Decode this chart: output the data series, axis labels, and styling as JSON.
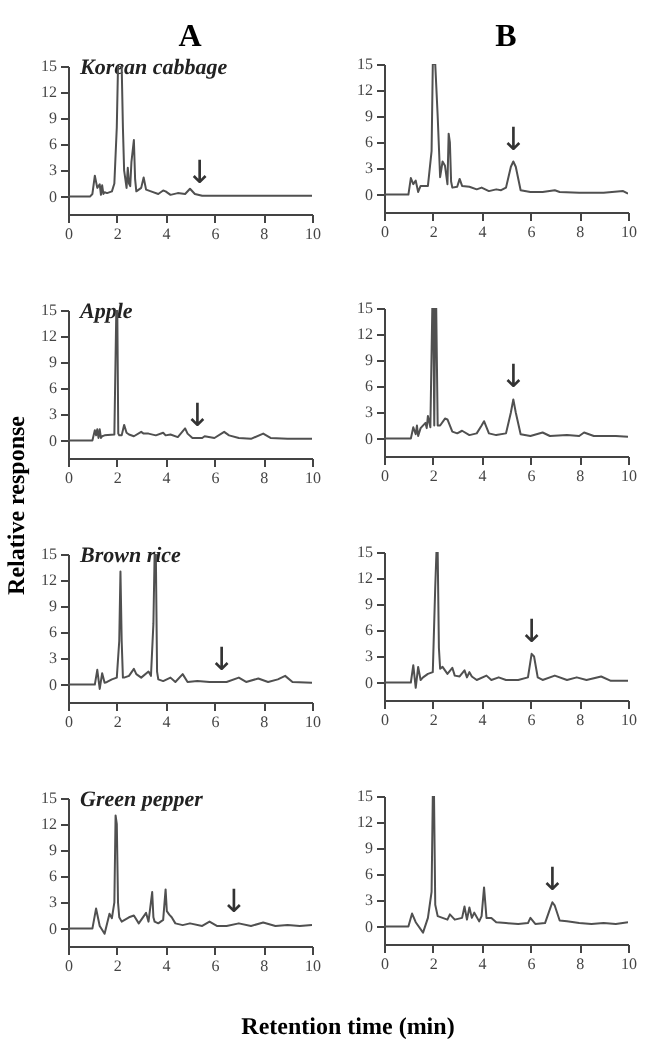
{
  "chart_data": [
    {
      "type": "line",
      "title": "A",
      "xlim": [
        0,
        10
      ],
      "xticks": [
        0,
        2,
        4,
        6,
        8,
        10
      ],
      "ylim": [
        -2,
        15
      ],
      "yticks": [
        0,
        3,
        6,
        9,
        12,
        15
      ],
      "x": [
        0,
        0.9,
        1.0,
        1.1,
        1.2,
        1.3,
        1.35,
        1.4,
        1.45,
        1.5,
        1.6,
        1.8,
        1.9,
        2.0,
        2.05,
        2.1,
        2.2,
        2.25,
        2.3,
        2.4,
        2.45,
        2.5,
        2.55,
        2.6,
        2.7,
        2.75,
        2.8,
        2.9,
        3.0,
        3.1,
        3.2,
        3.4,
        3.7,
        3.9,
        4.0,
        4.2,
        4.5,
        4.8,
        5.0,
        5.2,
        5.5,
        6,
        7,
        8,
        9,
        10
      ],
      "series": [
        {
          "color": "#505050",
          "values": [
            0,
            0,
            0.3,
            2.4,
            1.0,
            1.4,
            0.2,
            1.3,
            0.3,
            0.5,
            0.4,
            0.6,
            1.5,
            8,
            15,
            15,
            15,
            8,
            3,
            1,
            3.3,
            1.5,
            1.2,
            4,
            6.5,
            2,
            0.6,
            0.8,
            1.0,
            2.2,
            0.8,
            0.6,
            0.3,
            0.7,
            0.6,
            0.2,
            0.4,
            0.3,
            0.9,
            0.3,
            0.1,
            0.1,
            0.1,
            0.1,
            0.1,
            0.1
          ]
        }
      ],
      "annotations": [
        "Korean cabbage",
        {
          "text": "↓",
          "x": 5.4,
          "y": 0.2
        }
      ]
    },
    {
      "type": "line",
      "title": "B",
      "xlim": [
        0,
        10
      ],
      "xticks": [
        0,
        2,
        4,
        6,
        8,
        10
      ],
      "ylim": [
        -2,
        15
      ],
      "yticks": [
        0,
        3,
        6,
        9,
        12,
        15
      ],
      "x": [
        0,
        1.0,
        1.1,
        1.2,
        1.3,
        1.4,
        1.5,
        1.8,
        1.95,
        2.0,
        2.05,
        2.1,
        2.2,
        2.3,
        2.4,
        2.5,
        2.6,
        2.65,
        2.7,
        2.75,
        2.8,
        3.0,
        3.1,
        3.2,
        3.5,
        3.8,
        4.0,
        4.3,
        4.6,
        4.8,
        5.0,
        5.2,
        5.3,
        5.4,
        5.6,
        6.0,
        6.5,
        7.0,
        7.2,
        8,
        9,
        9.8,
        10
      ],
      "series": [
        {
          "color": "#505050",
          "values": [
            0,
            0,
            1.9,
            1.2,
            1.6,
            0.3,
            1.0,
            1.0,
            5,
            15,
            15,
            15,
            9,
            2,
            3.8,
            3.3,
            1.2,
            7,
            6,
            1.5,
            0.8,
            0.9,
            1.8,
            1.0,
            0.9,
            0.6,
            0.8,
            0.4,
            0.6,
            0.5,
            0.8,
            3.2,
            3.8,
            3.2,
            0.5,
            0.3,
            0.3,
            0.5,
            0.3,
            0.2,
            0.2,
            0.4,
            0.1
          ]
        }
      ],
      "annotations": [
        {
          "text": "↓",
          "x": 5.3,
          "y": 3.8
        }
      ]
    },
    {
      "type": "line",
      "ylabel": "Relative response",
      "xlim": [
        0,
        10
      ],
      "xticks": [
        0,
        2,
        4,
        6,
        8,
        10
      ],
      "ylim": [
        -2,
        15
      ],
      "yticks": [
        0,
        3,
        6,
        9,
        12,
        15
      ],
      "x": [
        0,
        1.0,
        1.1,
        1.15,
        1.2,
        1.25,
        1.3,
        1.35,
        1.4,
        1.5,
        1.9,
        1.98,
        2.02,
        2.06,
        2.1,
        2.2,
        2.3,
        2.4,
        2.5,
        2.7,
        3.0,
        3.1,
        3.3,
        3.6,
        3.9,
        4.0,
        4.2,
        4.5,
        4.8,
        4.9,
        5.1,
        5.5,
        5.6,
        6.0,
        6.4,
        6.6,
        7.0,
        7.5,
        8.0,
        8.3,
        9,
        10
      ],
      "series": [
        {
          "color": "#505050",
          "values": [
            0,
            0,
            1.2,
            0.6,
            1.3,
            0.3,
            1.3,
            0.3,
            0.5,
            0.6,
            0.7,
            15,
            15,
            0.8,
            0.6,
            0.6,
            1.8,
            0.9,
            0.7,
            0.5,
            1.0,
            0.8,
            0.8,
            0.6,
            0.9,
            0.6,
            0.7,
            0.4,
            1.4,
            0.8,
            0.3,
            0.3,
            0.5,
            0.3,
            1.0,
            0.6,
            0.3,
            0.2,
            0.8,
            0.3,
            0.2,
            0.2
          ]
        }
      ],
      "annotations": [
        "Apple",
        {
          "text": "↓",
          "x": 5.3,
          "y": 0.3
        }
      ]
    },
    {
      "type": "line",
      "xlim": [
        0,
        10
      ],
      "xticks": [
        0,
        2,
        4,
        6,
        8,
        10
      ],
      "ylim": [
        -2,
        15
      ],
      "yticks": [
        0,
        3,
        6,
        9,
        12,
        15
      ],
      "x": [
        0,
        1.1,
        1.2,
        1.3,
        1.35,
        1.4,
        1.5,
        1.7,
        1.75,
        1.8,
        1.9,
        1.98,
        2.02,
        2.06,
        2.1,
        2.14,
        2.2,
        2.3,
        2.5,
        2.6,
        2.8,
        3.0,
        3.2,
        3.5,
        3.8,
        4.0,
        4.1,
        4.3,
        4.6,
        5.0,
        5.2,
        5.3,
        5.4,
        5.6,
        6.0,
        6.5,
        6.8,
        7.5,
        8.0,
        8.2,
        8.6,
        9,
        9.5,
        10
      ],
      "series": [
        {
          "color": "#505050",
          "values": [
            0,
            0,
            1.3,
            0.5,
            1.5,
            0.3,
            1.2,
            1.8,
            1.2,
            2.6,
            1.3,
            15,
            15,
            1.5,
            15,
            15,
            1.5,
            1.5,
            2.3,
            2.2,
            0.8,
            0.6,
            0.9,
            0.4,
            0.6,
            1.5,
            2.0,
            0.6,
            0.4,
            0.6,
            3,
            4.5,
            3,
            0.5,
            0.3,
            0.7,
            0.3,
            0.4,
            0.3,
            0.7,
            0.3,
            0.3,
            0.3,
            0.2
          ]
        }
      ],
      "annotations": [
        {
          "text": "↓",
          "x": 5.3,
          "y": 4.5
        }
      ]
    },
    {
      "type": "line",
      "xlim": [
        0,
        10
      ],
      "xticks": [
        0,
        2,
        4,
        6,
        8,
        10
      ],
      "ylim": [
        -2,
        15
      ],
      "yticks": [
        0,
        3,
        6,
        9,
        12,
        15
      ],
      "x": [
        0,
        1.1,
        1.2,
        1.3,
        1.4,
        1.5,
        1.6,
        1.8,
        2.0,
        2.1,
        2.15,
        2.2,
        2.25,
        2.3,
        2.5,
        2.7,
        2.8,
        3.0,
        3.3,
        3.4,
        3.5,
        3.55,
        3.6,
        3.65,
        3.7,
        3.9,
        4.2,
        4.4,
        4.7,
        4.9,
        5.3,
        5.8,
        6.5,
        7.0,
        7.3,
        7.8,
        8.2,
        8.6,
        8.9,
        9.2,
        10
      ],
      "series": [
        {
          "color": "#505050",
          "values": [
            0,
            0,
            1.7,
            -0.5,
            1.3,
            0.2,
            0.3,
            0.6,
            0.8,
            5,
            13,
            5,
            0.8,
            0.8,
            1.0,
            1.8,
            1.2,
            0.8,
            1.5,
            1.0,
            7,
            15,
            15,
            1.5,
            0.6,
            0.4,
            0.8,
            0.3,
            1.2,
            0.3,
            0.4,
            0.3,
            0.3,
            0.8,
            0.3,
            0.7,
            0.3,
            0.6,
            1.0,
            0.3,
            0.2
          ]
        }
      ],
      "annotations": [
        "Brown rice",
        {
          "text": "↓",
          "x": 6.3,
          "y": 0.3
        }
      ]
    },
    {
      "type": "line",
      "xlim": [
        0,
        10
      ],
      "xticks": [
        0,
        2,
        4,
        6,
        8,
        10
      ],
      "ylim": [
        -2,
        15
      ],
      "yticks": [
        0,
        3,
        6,
        9,
        12,
        15
      ],
      "x": [
        0,
        1.1,
        1.2,
        1.3,
        1.4,
        1.5,
        1.6,
        1.8,
        2.0,
        2.1,
        2.15,
        2.2,
        2.25,
        2.3,
        2.4,
        2.6,
        2.8,
        2.9,
        3.1,
        3.3,
        3.4,
        3.5,
        3.6,
        3.8,
        4.2,
        4.4,
        4.7,
        5.0,
        5.5,
        5.9,
        6.05,
        6.15,
        6.3,
        6.5,
        7.0,
        7.5,
        7.9,
        8.3,
        8.9,
        9.3,
        10
      ],
      "series": [
        {
          "color": "#505050",
          "values": [
            0,
            0,
            2,
            -0.6,
            1.8,
            0.3,
            0.6,
            1.0,
            1.2,
            11,
            15,
            15,
            4,
            1.6,
            1.8,
            1.0,
            1.7,
            0.8,
            0.7,
            1.4,
            0.6,
            1.2,
            0.7,
            0.3,
            0.8,
            0.3,
            0.6,
            0.3,
            0.3,
            0.6,
            3.3,
            3.0,
            0.6,
            0.3,
            0.8,
            0.3,
            0.6,
            0.3,
            0.7,
            0.2,
            0.2
          ]
        }
      ],
      "annotations": [
        {
          "text": "↓",
          "x": 6.05,
          "y": 3.3
        }
      ]
    },
    {
      "type": "line",
      "xlabel": "Retention time (min)",
      "xlim": [
        0,
        10
      ],
      "xticks": [
        0,
        2,
        4,
        6,
        8,
        10
      ],
      "ylim": [
        -2,
        15
      ],
      "yticks": [
        0,
        3,
        6,
        9,
        12,
        15
      ],
      "x": [
        0,
        1.0,
        1.15,
        1.3,
        1.5,
        1.7,
        1.8,
        1.9,
        1.95,
        2.0,
        2.05,
        2.1,
        2.2,
        2.5,
        2.7,
        2.9,
        3.2,
        3.3,
        3.45,
        3.5,
        3.55,
        3.7,
        3.9,
        4.0,
        4.05,
        4.15,
        4.25,
        4.4,
        4.7,
        5.0,
        5.5,
        5.8,
        6.1,
        6.5,
        7.0,
        7.5,
        8.0,
        8.5,
        9,
        9.5,
        10
      ],
      "series": [
        {
          "color": "#505050",
          "values": [
            0,
            0,
            2.3,
            0.3,
            -0.6,
            1.7,
            1.2,
            3,
            13,
            12,
            3,
            1.3,
            0.8,
            1.3,
            1.5,
            0.6,
            1.8,
            0.8,
            4.2,
            1.3,
            0.8,
            0.6,
            1.0,
            4.5,
            2.0,
            1.6,
            1.3,
            0.6,
            0.4,
            0.6,
            0.3,
            0.8,
            0.3,
            0.3,
            0.6,
            0.3,
            0.7,
            0.3,
            0.4,
            0.3,
            0.4
          ]
        }
      ],
      "annotations": [
        "Green pepper",
        {
          "text": "↓",
          "x": 6.8,
          "y": 0.5
        }
      ]
    },
    {
      "type": "line",
      "xlim": [
        0,
        10
      ],
      "xticks": [
        0,
        2,
        4,
        6,
        8,
        10
      ],
      "ylim": [
        -2,
        15
      ],
      "yticks": [
        0,
        3,
        6,
        9,
        12,
        15
      ],
      "x": [
        0,
        1.0,
        1.15,
        1.3,
        1.6,
        1.8,
        1.95,
        2.0,
        2.05,
        2.1,
        2.2,
        2.4,
        2.6,
        2.7,
        2.9,
        3.2,
        3.3,
        3.4,
        3.5,
        3.6,
        3.7,
        3.9,
        4.0,
        4.1,
        4.2,
        4.4,
        4.6,
        5.0,
        5.5,
        5.9,
        6.0,
        6.2,
        6.6,
        6.8,
        6.9,
        7.0,
        7.2,
        7.5,
        8,
        8.5,
        9,
        9.5,
        10
      ],
      "series": [
        {
          "color": "#505050",
          "values": [
            0,
            0,
            1.5,
            0.5,
            -0.7,
            1.0,
            4,
            15,
            15,
            2.5,
            1.2,
            1.0,
            0.8,
            1.4,
            0.8,
            1.0,
            2.3,
            0.8,
            2.2,
            1.0,
            1.6,
            0.6,
            1.2,
            4.5,
            1.0,
            1.0,
            0.5,
            0.4,
            0.3,
            0.4,
            1.0,
            0.3,
            0.4,
            2.0,
            2.8,
            2.4,
            0.7,
            0.6,
            0.4,
            0.3,
            0.4,
            0.3,
            0.5
          ]
        }
      ],
      "annotations": [
        {
          "text": "↓",
          "x": 6.9,
          "y": 2.8
        }
      ]
    }
  ]
}
